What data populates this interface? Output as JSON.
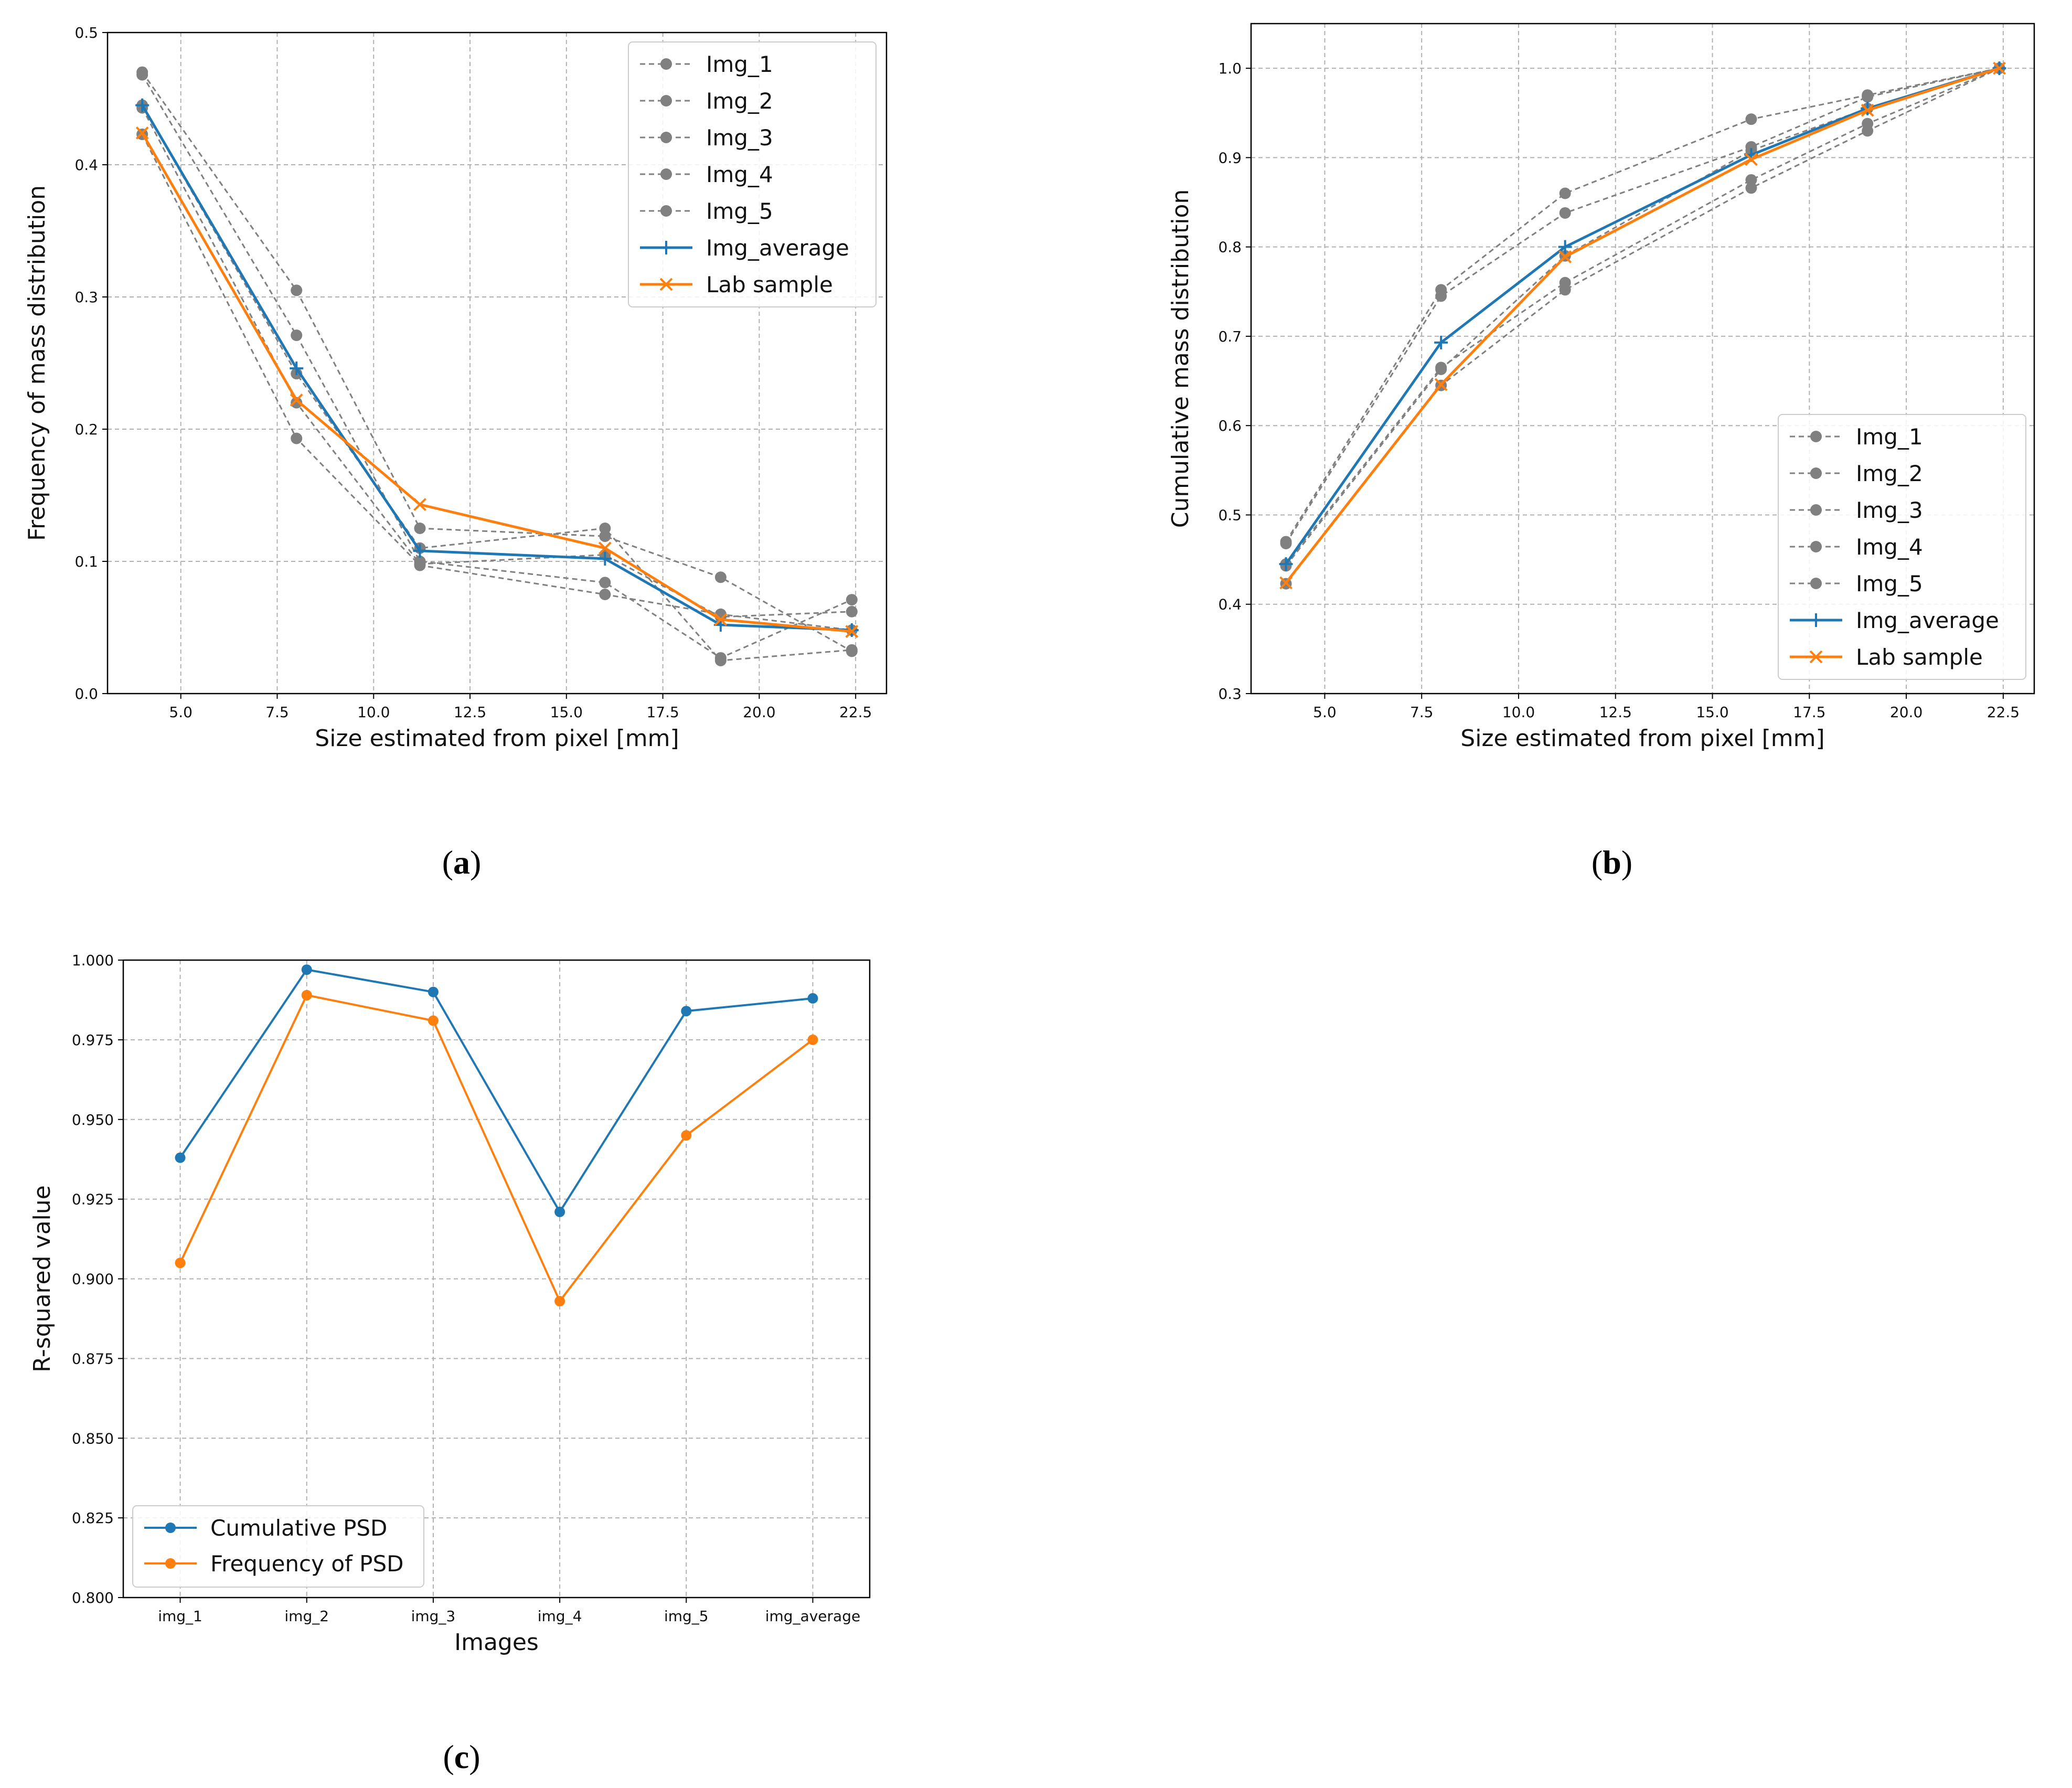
{
  "colors": {
    "blue": "#1f77b4",
    "orange": "#ff7f0e",
    "gray": "#808080",
    "grid": "#b0b0b0"
  },
  "chart_data": [
    {
      "id": "a",
      "panel_label": "a",
      "type": "line",
      "xlabel": "Size estimated from pixel [mm]",
      "ylabel": "Frequency of mass distribution",
      "xlim": [
        3.1,
        23.3
      ],
      "ylim": [
        0.0,
        0.5
      ],
      "xticks": [
        5.0,
        7.5,
        10.0,
        12.5,
        15.0,
        17.5,
        20.0,
        22.5
      ],
      "xtick_labels": [
        "5.0",
        "7.5",
        "10.0",
        "12.5",
        "15.0",
        "17.5",
        "20.0",
        "22.5"
      ],
      "yticks": [
        0.0,
        0.1,
        0.2,
        0.3,
        0.4,
        0.5
      ],
      "ytick_labels": [
        "0.0",
        "0.1",
        "0.2",
        "0.3",
        "0.4",
        "0.5"
      ],
      "grid": true,
      "legend": "top-right",
      "x": [
        4.0,
        8.0,
        11.2,
        16.0,
        19.0,
        22.4
      ],
      "series": [
        {
          "name": "Img_1",
          "style": "gray-dashed-dot",
          "values": [
            0.47,
            0.305,
            0.125,
            0.119,
            0.088,
            0.032
          ]
        },
        {
          "name": "Img_2",
          "style": "gray-dashed-dot",
          "values": [
            0.468,
            0.271,
            0.1,
            0.084,
            0.027,
            0.071
          ]
        },
        {
          "name": "Img_3",
          "style": "gray-dashed-dot",
          "values": [
            0.445,
            0.242,
            0.11,
            0.125,
            0.025,
            0.033
          ]
        },
        {
          "name": "Img_4",
          "style": "gray-dashed-dot",
          "values": [
            0.423,
            0.193,
            0.097,
            0.075,
            0.06,
            0.048
          ]
        },
        {
          "name": "Img_5",
          "style": "gray-dashed-dot",
          "values": [
            0.443,
            0.22,
            0.098,
            0.105,
            0.058,
            0.062
          ]
        },
        {
          "name": "Img_average",
          "style": "blue-plus",
          "values": [
            0.445,
            0.246,
            0.108,
            0.102,
            0.052,
            0.048
          ]
        },
        {
          "name": "Lab sample",
          "style": "orange-x",
          "values": [
            0.424,
            0.222,
            0.143,
            0.11,
            0.056,
            0.047
          ]
        }
      ]
    },
    {
      "id": "b",
      "panel_label": "b",
      "type": "line",
      "xlabel": "Size estimated from pixel [mm]",
      "ylabel": "Cumulative mass distribution",
      "xlim": [
        3.1,
        23.3
      ],
      "ylim": [
        0.3,
        1.05
      ],
      "xticks": [
        5.0,
        7.5,
        10.0,
        12.5,
        15.0,
        17.5,
        20.0,
        22.5
      ],
      "xtick_labels": [
        "5.0",
        "7.5",
        "10.0",
        "12.5",
        "15.0",
        "17.5",
        "20.0",
        "22.5"
      ],
      "yticks": [
        0.3,
        0.4,
        0.5,
        0.6,
        0.7,
        0.8,
        0.9,
        1.0
      ],
      "ytick_labels": [
        "0.3",
        "0.4",
        "0.5",
        "0.6",
        "0.7",
        "0.8",
        "0.9",
        "1.0"
      ],
      "grid": true,
      "legend": "lower-right",
      "x": [
        4.0,
        8.0,
        11.2,
        16.0,
        19.0,
        22.4
      ],
      "series": [
        {
          "name": "Img_1",
          "style": "gray-dashed-dot",
          "values": [
            0.47,
            0.752,
            0.86,
            0.943,
            0.97,
            1.0
          ]
        },
        {
          "name": "Img_2",
          "style": "gray-dashed-dot",
          "values": [
            0.468,
            0.745,
            0.838,
            0.912,
            0.968,
            1.0
          ]
        },
        {
          "name": "Img_3",
          "style": "gray-dashed-dot",
          "values": [
            0.445,
            0.665,
            0.76,
            0.875,
            0.938,
            1.0
          ]
        },
        {
          "name": "Img_4",
          "style": "gray-dashed-dot",
          "values": [
            0.423,
            0.645,
            0.752,
            0.866,
            0.93,
            1.0
          ]
        },
        {
          "name": "Img_5",
          "style": "gray-dashed-dot",
          "values": [
            0.443,
            0.663,
            0.79,
            0.908,
            0.955,
            1.0
          ]
        },
        {
          "name": "Img_average",
          "style": "blue-plus",
          "values": [
            0.445,
            0.693,
            0.8,
            0.903,
            0.955,
            1.0
          ]
        },
        {
          "name": "Lab sample",
          "style": "orange-x",
          "values": [
            0.424,
            0.646,
            0.789,
            0.898,
            0.953,
            1.0
          ]
        }
      ]
    },
    {
      "id": "c",
      "panel_label": "c",
      "type": "line",
      "xlabel": "Images",
      "ylabel": "R-squared value",
      "categories": [
        "img_1",
        "img_2",
        "img_3",
        "img_4",
        "img_5",
        "img_average"
      ],
      "ylim": [
        0.8,
        1.0
      ],
      "yticks": [
        0.8,
        0.825,
        0.85,
        0.875,
        0.9,
        0.925,
        0.95,
        0.975,
        1.0
      ],
      "ytick_labels": [
        "0.800",
        "0.825",
        "0.850",
        "0.875",
        "0.900",
        "0.925",
        "0.950",
        "0.975",
        "1.000"
      ],
      "grid": true,
      "legend": "lower-left",
      "series": [
        {
          "name": "Cumulative PSD",
          "style": "blue-dot",
          "values": [
            0.938,
            0.997,
            0.99,
            0.921,
            0.984,
            0.988
          ]
        },
        {
          "name": "Frequency of PSD",
          "style": "orange-dot",
          "values": [
            0.905,
            0.989,
            0.981,
            0.893,
            0.945,
            0.975
          ]
        }
      ]
    }
  ]
}
